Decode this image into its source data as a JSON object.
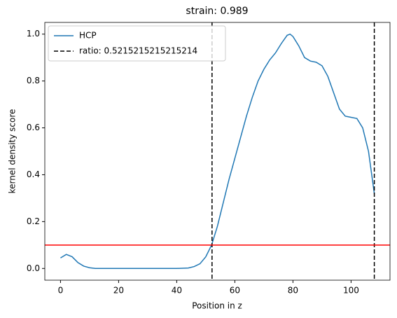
{
  "chart_data": {
    "type": "line",
    "title": "strain: 0.989",
    "xlabel": "Position in z",
    "ylabel": "kernel density score",
    "x": [
      0,
      2,
      4,
      6,
      8,
      10,
      12,
      16,
      20,
      30,
      40,
      44,
      46,
      48,
      50,
      52,
      54,
      56,
      58,
      60,
      62,
      64,
      66,
      68,
      70,
      72,
      74,
      76,
      78,
      79,
      80,
      82,
      84,
      86,
      88,
      90,
      92,
      94,
      96,
      98,
      100,
      102,
      104,
      106,
      108
    ],
    "series": [
      {
        "name": "HCP",
        "color": "#1f77b4",
        "values": [
          0.045,
          0.06,
          0.05,
          0.025,
          0.01,
          0.003,
          0.0,
          0.0,
          0.0,
          0.0,
          0.0,
          0.002,
          0.008,
          0.02,
          0.05,
          0.1,
          0.18,
          0.28,
          0.38,
          0.47,
          0.56,
          0.65,
          0.73,
          0.8,
          0.85,
          0.89,
          0.92,
          0.96,
          0.995,
          1.0,
          0.99,
          0.95,
          0.9,
          0.885,
          0.88,
          0.865,
          0.82,
          0.75,
          0.68,
          0.65,
          0.645,
          0.64,
          0.6,
          0.5,
          0.32
        ]
      }
    ],
    "vlines": {
      "name": "ratio: 0.5215215215215214",
      "color": "#000000",
      "x": [
        52.15,
        108
      ]
    },
    "hline": {
      "y": 0.1,
      "color": "#ff0000"
    },
    "xlim": [
      -5.4,
      113.4
    ],
    "ylim": [
      -0.05,
      1.05
    ],
    "xticks": [
      0,
      20,
      40,
      60,
      80,
      100
    ],
    "yticks": [
      {
        "value": 0,
        "label": "0.0"
      },
      {
        "value": 0.2,
        "label": "0.2"
      },
      {
        "value": 0.4,
        "label": "0.4"
      },
      {
        "value": 0.6,
        "label": "0.6"
      },
      {
        "value": 0.8,
        "label": "0.8"
      },
      {
        "value": 1,
        "label": "1.0"
      }
    ],
    "legend": "upper left"
  }
}
